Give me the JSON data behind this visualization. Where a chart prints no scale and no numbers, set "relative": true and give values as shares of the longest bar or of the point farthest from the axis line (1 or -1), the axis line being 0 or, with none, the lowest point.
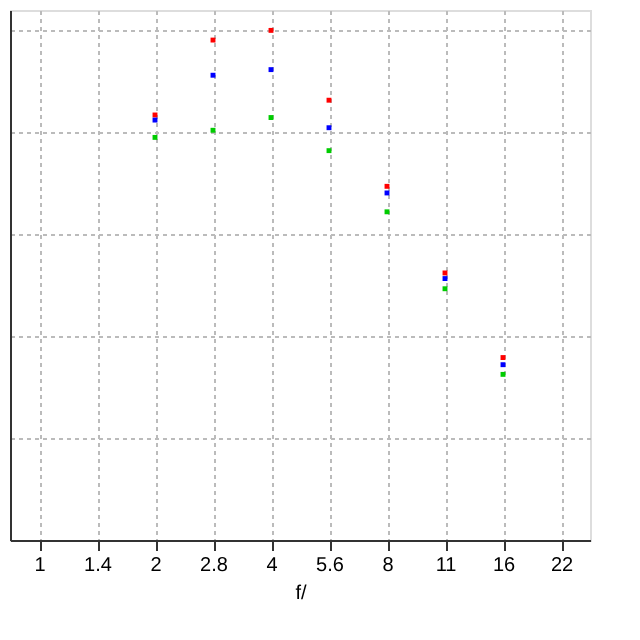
{
  "chart_data": {
    "type": "scatter",
    "xlabel": "f/",
    "categories": [
      "1",
      "1.4",
      "2",
      "2.8",
      "4",
      "5.6",
      "8",
      "11",
      "16",
      "22"
    ],
    "relative": true,
    "marker": "square",
    "grid": true,
    "series": [
      {
        "color": "#ff0000",
        "values": [
          null,
          null,
          0.834,
          0.981,
          1.0,
          0.863,
          0.694,
          0.524,
          0.358,
          null
        ]
      },
      {
        "color": "#0000ff",
        "values": [
          null,
          null,
          0.824,
          0.912,
          0.923,
          0.809,
          0.681,
          0.513,
          0.344,
          null
        ]
      },
      {
        "color": "#00cc00",
        "values": [
          null,
          null,
          0.79,
          0.804,
          0.829,
          0.764,
          0.644,
          0.493,
          0.325,
          null
        ]
      }
    ]
  }
}
